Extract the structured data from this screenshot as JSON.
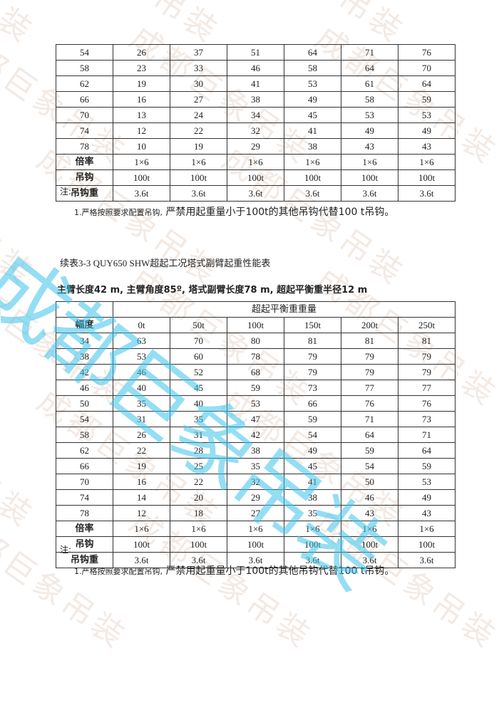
{
  "watermark": {
    "text": "成都巨象吊装",
    "color_faint": "#c8a082",
    "color_big": "#3cc3eb"
  },
  "table1": {
    "rows": [
      [
        "54",
        "26",
        "37",
        "51",
        "64",
        "71",
        "76"
      ],
      [
        "58",
        "23",
        "33",
        "46",
        "58",
        "64",
        "70"
      ],
      [
        "62",
        "19",
        "30",
        "41",
        "53",
        "61",
        "64"
      ],
      [
        "66",
        "16",
        "27",
        "38",
        "49",
        "58",
        "59"
      ],
      [
        "70",
        "13",
        "24",
        "34",
        "45",
        "53",
        "53"
      ],
      [
        "74",
        "12",
        "22",
        "32",
        "41",
        "49",
        "49"
      ],
      [
        "78",
        "10",
        "19",
        "29",
        "38",
        "43",
        "43"
      ],
      [
        "倍率",
        "1×6",
        "1×6",
        "1×6",
        "1×6",
        "1×6",
        "1×6"
      ],
      [
        "吊钩",
        "100t",
        "100t",
        "100t",
        "100t",
        "100t",
        "100t"
      ],
      [
        "吊钩重",
        "3.6t",
        "3.6t",
        "3.6t",
        "3.6t",
        "3.6t",
        "3.6t"
      ]
    ]
  },
  "note1": {
    "heading": "注:",
    "prefix": "1.严格按照要求配置吊钩,",
    "text": "严禁用起重量小于100t的其他吊钩代替100 t吊钩。"
  },
  "section2": {
    "title": "续表3-3 QUY650 SHW超起工况塔式副臂起重性能表",
    "subtitle": "主臂长度42 m, 主臂角度85º, 塔式副臂长度78 m, 超起平衡重半径12 m"
  },
  "table2": {
    "group_header": "超起平衡重重量",
    "row_header": "幅度",
    "columns": [
      "0t",
      "50t",
      "100t",
      "150t",
      "200t",
      "250t"
    ],
    "rows": [
      [
        "34",
        "63",
        "70",
        "80",
        "81",
        "81",
        "81"
      ],
      [
        "38",
        "53",
        "60",
        "78",
        "79",
        "79",
        "79"
      ],
      [
        "42",
        "46",
        "52",
        "68",
        "79",
        "79",
        "79"
      ],
      [
        "46",
        "40",
        "45",
        "59",
        "73",
        "77",
        "77"
      ],
      [
        "50",
        "35",
        "40",
        "53",
        "66",
        "76",
        "76"
      ],
      [
        "54",
        "31",
        "35",
        "47",
        "59",
        "71",
        "73"
      ],
      [
        "58",
        "26",
        "31",
        "42",
        "54",
        "64",
        "71"
      ],
      [
        "62",
        "22",
        "28",
        "38",
        "49",
        "59",
        "64"
      ],
      [
        "66",
        "19",
        "25",
        "35",
        "45",
        "54",
        "59"
      ],
      [
        "70",
        "16",
        "22",
        "32",
        "41",
        "50",
        "53"
      ],
      [
        "74",
        "14",
        "20",
        "29",
        "38",
        "46",
        "49"
      ],
      [
        "78",
        "12",
        "18",
        "27",
        "35",
        "43",
        "43"
      ],
      [
        "倍率",
        "1×6",
        "1×6",
        "1×6",
        "1×6",
        "1×6",
        "1×6"
      ],
      [
        "吊钩",
        "100t",
        "100t",
        "100t",
        "100t",
        "100t",
        "100t"
      ],
      [
        "吊钩重",
        "3.6t",
        "3.6t",
        "3.6t",
        "3.6t",
        "3.6t",
        "3.6t"
      ]
    ]
  },
  "note2": {
    "heading": "注:",
    "prefix": "1.严格按照要求配置吊钩,",
    "text": "严禁用起重量小于100t的其他吊钩代替100 t吊钩。"
  }
}
